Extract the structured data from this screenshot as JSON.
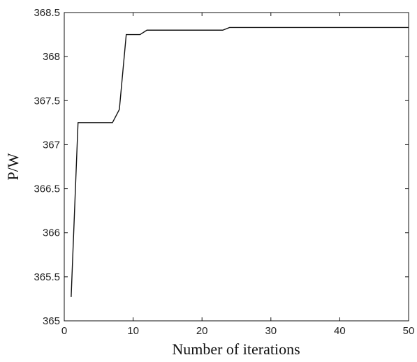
{
  "chart_data": {
    "type": "line",
    "title": "",
    "xlabel": "Number of iterations",
    "ylabel": "P/W",
    "xlim": [
      0,
      50
    ],
    "ylim": [
      365,
      368.5
    ],
    "x_ticks": [
      0,
      10,
      20,
      30,
      40,
      50
    ],
    "x_tick_labels": [
      "0",
      "10",
      "20",
      "30",
      "40",
      "50"
    ],
    "y_ticks": [
      365,
      365.5,
      366,
      366.5,
      367,
      367.5,
      368,
      368.5
    ],
    "y_tick_labels": [
      "365",
      "365.5",
      "366",
      "366.5",
      "367",
      "367.5",
      "368",
      "368.5"
    ],
    "grid": false,
    "line_color": "#111111",
    "series": [
      {
        "x": [
          1,
          2,
          3,
          4,
          5,
          6,
          7,
          8,
          9,
          10,
          11,
          12,
          13,
          14,
          15,
          16,
          17,
          18,
          19,
          20,
          21,
          22,
          23,
          24,
          25,
          26,
          27,
          28,
          29,
          30,
          31,
          32,
          33,
          34,
          35,
          36,
          37,
          38,
          39,
          40,
          41,
          42,
          43,
          44,
          45,
          46,
          47,
          48,
          49,
          50
        ],
        "values": [
          365.27,
          367.25,
          367.25,
          367.25,
          367.25,
          367.25,
          367.25,
          367.4,
          368.25,
          368.25,
          368.25,
          368.3,
          368.3,
          368.3,
          368.3,
          368.3,
          368.3,
          368.3,
          368.3,
          368.3,
          368.3,
          368.3,
          368.3,
          368.33,
          368.33,
          368.33,
          368.33,
          368.33,
          368.33,
          368.33,
          368.33,
          368.33,
          368.33,
          368.33,
          368.33,
          368.33,
          368.33,
          368.33,
          368.33,
          368.33,
          368.33,
          368.33,
          368.33,
          368.33,
          368.33,
          368.33,
          368.33,
          368.33,
          368.33,
          368.33
        ]
      }
    ]
  }
}
